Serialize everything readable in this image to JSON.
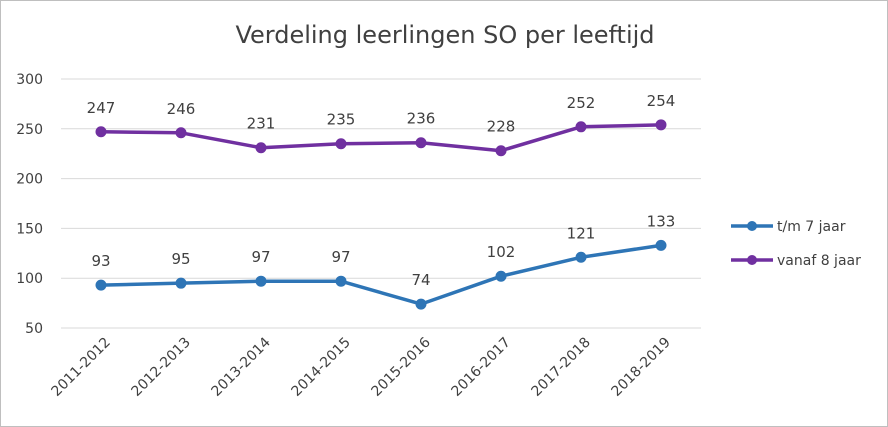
{
  "chart_data": {
    "type": "line",
    "title": "Verdeling leerlingen SO per leeftijd",
    "categories": [
      "2011-2012",
      "2012-2013",
      "2013-2014",
      "2014-2015",
      "2015-2016",
      "2016-2017",
      "2017-2018",
      "2018-2019"
    ],
    "series": [
      {
        "name": "t/m 7 jaar",
        "color": "#2e75b6",
        "values": [
          93,
          95,
          97,
          97,
          74,
          102,
          121,
          133
        ]
      },
      {
        "name": "vanaf 8 jaar",
        "color": "#7030a0",
        "values": [
          247,
          246,
          231,
          235,
          236,
          228,
          252,
          254
        ]
      }
    ],
    "yticks": [
      50,
      100,
      150,
      200,
      250,
      300
    ],
    "ylim": [
      50,
      300
    ],
    "grid": true,
    "data_labels": true,
    "legend_position": "right"
  }
}
